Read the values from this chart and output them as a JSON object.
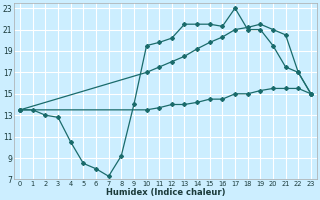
{
  "xlabel": "Humidex (Indice chaleur)",
  "background_color": "#cceeff",
  "grid_color": "#ffffff",
  "line_color": "#1a6b6b",
  "xlim": [
    -0.5,
    23.5
  ],
  "ylim": [
    7,
    23.5
  ],
  "xticks": [
    0,
    1,
    2,
    3,
    4,
    5,
    6,
    7,
    8,
    9,
    10,
    11,
    12,
    13,
    14,
    15,
    16,
    17,
    18,
    19,
    20,
    21,
    22,
    23
  ],
  "yticks": [
    7,
    9,
    11,
    13,
    15,
    17,
    19,
    21,
    23
  ],
  "line1_x": [
    0,
    1,
    2,
    3,
    4,
    5,
    6,
    7,
    8,
    9,
    10,
    11,
    12,
    13,
    14,
    15,
    16,
    17,
    18,
    19,
    20,
    21,
    22,
    23
  ],
  "line1_y": [
    13.5,
    13.5,
    13.0,
    12.8,
    10.5,
    8.5,
    8.0,
    7.3,
    9.2,
    14.0,
    19.5,
    19.8,
    20.2,
    21.5,
    21.5,
    21.5,
    21.3,
    23.0,
    21.0,
    21.0,
    19.5,
    17.5,
    17.0,
    15.0
  ],
  "line2_x": [
    0,
    10,
    11,
    12,
    13,
    14,
    15,
    16,
    17,
    18,
    19,
    20,
    21,
    22,
    23
  ],
  "line2_y": [
    13.5,
    17.0,
    17.5,
    18.0,
    18.5,
    19.2,
    19.8,
    20.3,
    21.0,
    21.2,
    21.5,
    21.0,
    20.5,
    17.0,
    15.0
  ],
  "line3_x": [
    0,
    10,
    11,
    12,
    13,
    14,
    15,
    16,
    17,
    18,
    19,
    20,
    21,
    22,
    23
  ],
  "line3_y": [
    13.5,
    13.5,
    13.7,
    14.0,
    14.0,
    14.2,
    14.5,
    14.5,
    15.0,
    15.0,
    15.3,
    15.5,
    15.5,
    15.5,
    15.0
  ]
}
